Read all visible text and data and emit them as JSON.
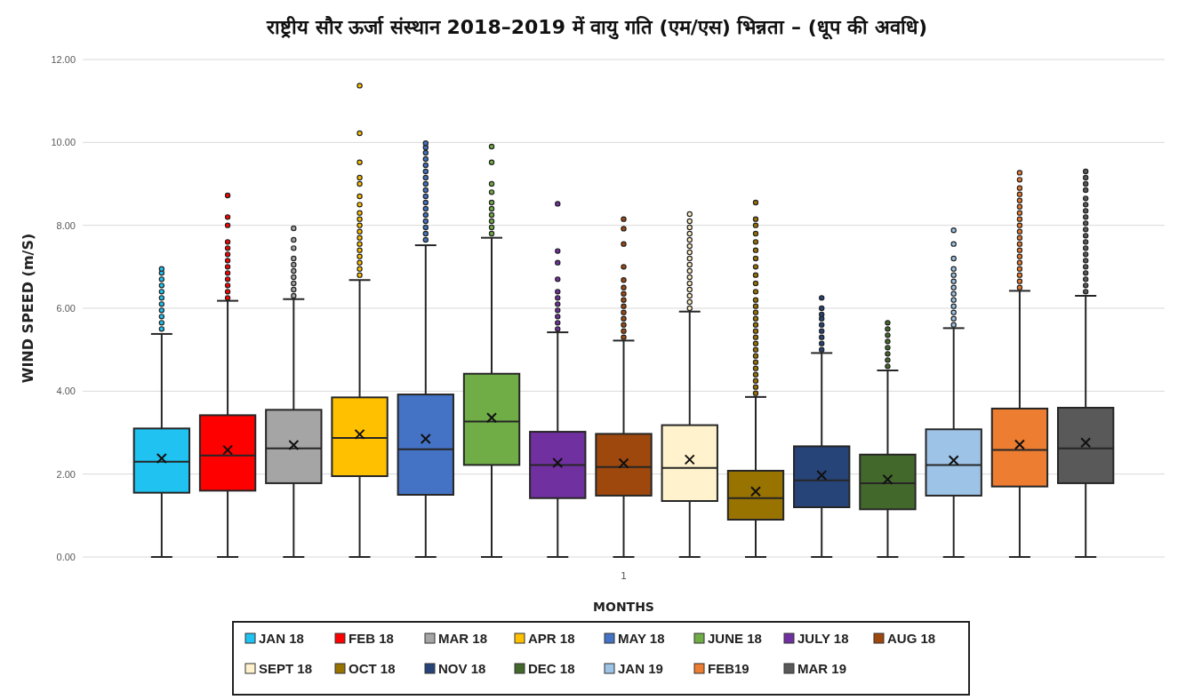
{
  "chart_data": {
    "type": "box",
    "title": "राष्ट्रीय सौर ऊर्जा संस्थान 2018–2019 में वायु गति (एम/एस) भिन्नता – (धूप की अवधि)",
    "xlabel": "MONTHS",
    "ylabel": "WIND SPEED (m/S)",
    "categories": [
      "1"
    ],
    "ylim": [
      0,
      12
    ],
    "yticks": [
      {
        "value": 0,
        "label": "0.00"
      },
      {
        "value": 2,
        "label": "2.00"
      },
      {
        "value": 4,
        "label": "4.00"
      },
      {
        "value": 6,
        "label": "6.00"
      },
      {
        "value": 8,
        "label": "8.00"
      },
      {
        "value": 10,
        "label": "10.00"
      },
      {
        "value": 12,
        "label": "12.00"
      }
    ],
    "grid": "y",
    "legend": "bottom",
    "marker": "circle",
    "series": [
      {
        "name": "JAN 18",
        "color": "#1fc2f0",
        "boxes": [
          {
            "low": 0,
            "q1": 1.55,
            "median": 2.3,
            "q3": 3.1,
            "high": 5.38,
            "mean": 2.38,
            "outliers": [
              5.5,
              5.65,
              5.8,
              5.95,
              6.1,
              6.25,
              6.4,
              6.55,
              6.7,
              6.85,
              6.95
            ]
          }
        ]
      },
      {
        "name": "FEB 18",
        "color": "#ff0000",
        "boxes": [
          {
            "low": 0,
            "q1": 1.6,
            "median": 2.45,
            "q3": 3.42,
            "high": 6.18,
            "mean": 2.58,
            "outliers": [
              6.25,
              6.4,
              6.55,
              6.7,
              6.85,
              7.0,
              7.15,
              7.3,
              7.45,
              7.6,
              8.0,
              8.2,
              8.72
            ]
          }
        ]
      },
      {
        "name": "MAR 18",
        "color": "#a5a5a5",
        "boxes": [
          {
            "low": 0,
            "q1": 1.78,
            "median": 2.62,
            "q3": 3.55,
            "high": 6.22,
            "mean": 2.7,
            "outliers": [
              6.3,
              6.45,
              6.6,
              6.75,
              6.9,
              7.05,
              7.2,
              7.45,
              7.65,
              7.93
            ]
          }
        ]
      },
      {
        "name": "APR 18",
        "color": "#ffc000",
        "boxes": [
          {
            "low": 0,
            "q1": 1.95,
            "median": 2.87,
            "q3": 3.85,
            "high": 6.68,
            "mean": 2.96,
            "outliers": [
              6.8,
              6.95,
              7.1,
              7.25,
              7.4,
              7.55,
              7.7,
              7.85,
              8.0,
              8.15,
              8.3,
              8.5,
              8.7,
              9.0,
              9.15,
              9.52,
              10.22,
              11.37
            ]
          }
        ]
      },
      {
        "name": "MAY 18",
        "color": "#4472c4",
        "boxes": [
          {
            "low": 0,
            "q1": 1.5,
            "median": 2.6,
            "q3": 3.92,
            "high": 7.52,
            "mean": 2.85,
            "outliers": [
              7.65,
              7.8,
              7.95,
              8.1,
              8.25,
              8.4,
              8.55,
              8.7,
              8.85,
              9.0,
              9.15,
              9.3,
              9.45,
              9.6,
              9.75,
              9.88,
              9.98
            ]
          }
        ]
      },
      {
        "name": "JUNE 18",
        "color": "#70ad47",
        "boxes": [
          {
            "low": 0,
            "q1": 2.22,
            "median": 3.27,
            "q3": 4.42,
            "high": 7.7,
            "mean": 3.36,
            "outliers": [
              7.8,
              7.95,
              8.1,
              8.25,
              8.4,
              8.55,
              8.8,
              9.0,
              9.52,
              9.9
            ]
          }
        ]
      },
      {
        "name": "JULY 18",
        "color": "#7030a0",
        "boxes": [
          {
            "low": 0,
            "q1": 1.42,
            "median": 2.22,
            "q3": 3.02,
            "high": 5.42,
            "mean": 2.27,
            "outliers": [
              5.5,
              5.65,
              5.8,
              5.95,
              6.1,
              6.25,
              6.4,
              6.7,
              7.1,
              7.38,
              8.52
            ]
          }
        ]
      },
      {
        "name": "AUG 18",
        "color": "#9e480e",
        "boxes": [
          {
            "low": 0,
            "q1": 1.48,
            "median": 2.17,
            "q3": 2.97,
            "high": 5.22,
            "mean": 2.26,
            "outliers": [
              5.3,
              5.45,
              5.6,
              5.75,
              5.9,
              6.05,
              6.2,
              6.35,
              6.5,
              6.68,
              7.0,
              7.55,
              7.92,
              8.15
            ]
          }
        ]
      },
      {
        "name": "SEPT 18",
        "color": "#fff2cc",
        "boxes": [
          {
            "low": 0,
            "q1": 1.35,
            "median": 2.15,
            "q3": 3.18,
            "high": 5.92,
            "mean": 2.35,
            "outliers": [
              6.0,
              6.15,
              6.3,
              6.45,
              6.6,
              6.75,
              6.9,
              7.05,
              7.2,
              7.35,
              7.5,
              7.65,
              7.8,
              7.95,
              8.1,
              8.27
            ]
          }
        ]
      },
      {
        "name": "OCT 18",
        "color": "#997300",
        "boxes": [
          {
            "low": 0,
            "q1": 0.9,
            "median": 1.42,
            "q3": 2.08,
            "high": 3.86,
            "mean": 1.58,
            "outliers": [
              3.95,
              4.1,
              4.25,
              4.4,
              4.55,
              4.7,
              4.85,
              5.0,
              5.15,
              5.3,
              5.45,
              5.6,
              5.75,
              5.9,
              6.05,
              6.2,
              6.4,
              6.6,
              6.8,
              7.0,
              7.2,
              7.4,
              7.6,
              7.8,
              8.0,
              8.15,
              8.55
            ]
          }
        ]
      },
      {
        "name": "NOV 18",
        "color": "#264478",
        "boxes": [
          {
            "low": 0,
            "q1": 1.2,
            "median": 1.85,
            "q3": 2.67,
            "high": 4.92,
            "mean": 1.97,
            "outliers": [
              5.0,
              5.15,
              5.3,
              5.45,
              5.6,
              5.75,
              5.85,
              6.0,
              6.25
            ]
          }
        ]
      },
      {
        "name": "DEC 18",
        "color": "#43682b",
        "boxes": [
          {
            "low": 0,
            "q1": 1.15,
            "median": 1.78,
            "q3": 2.47,
            "high": 4.5,
            "mean": 1.87,
            "outliers": [
              4.6,
              4.75,
              4.9,
              5.05,
              5.2,
              5.35,
              5.5,
              5.65
            ]
          }
        ]
      },
      {
        "name": "JAN 19",
        "color": "#9dc3e6",
        "boxes": [
          {
            "low": 0,
            "q1": 1.48,
            "median": 2.22,
            "q3": 3.08,
            "high": 5.52,
            "mean": 2.33,
            "outliers": [
              5.6,
              5.75,
              5.9,
              6.05,
              6.2,
              6.35,
              6.5,
              6.65,
              6.8,
              6.95,
              7.2,
              7.55,
              7.88
            ]
          }
        ]
      },
      {
        "name": "FEB19",
        "color": "#ed7d31",
        "boxes": [
          {
            "low": 0,
            "q1": 1.7,
            "median": 2.58,
            "q3": 3.58,
            "high": 6.42,
            "mean": 2.71,
            "outliers": [
              6.5,
              6.65,
              6.8,
              6.95,
              7.1,
              7.25,
              7.4,
              7.55,
              7.7,
              7.85,
              8.0,
              8.15,
              8.3,
              8.45,
              8.6,
              8.75,
              8.9,
              9.1,
              9.27
            ]
          }
        ]
      },
      {
        "name": "MAR 19",
        "color": "#595959",
        "boxes": [
          {
            "low": 0,
            "q1": 1.78,
            "median": 2.62,
            "q3": 3.6,
            "high": 6.3,
            "mean": 2.76,
            "outliers": [
              6.4,
              6.55,
              6.7,
              6.85,
              7.0,
              7.15,
              7.3,
              7.45,
              7.6,
              7.75,
              7.9,
              8.05,
              8.2,
              8.35,
              8.5,
              8.65,
              8.85,
              9.0,
              9.15,
              9.3
            ]
          }
        ]
      }
    ]
  }
}
